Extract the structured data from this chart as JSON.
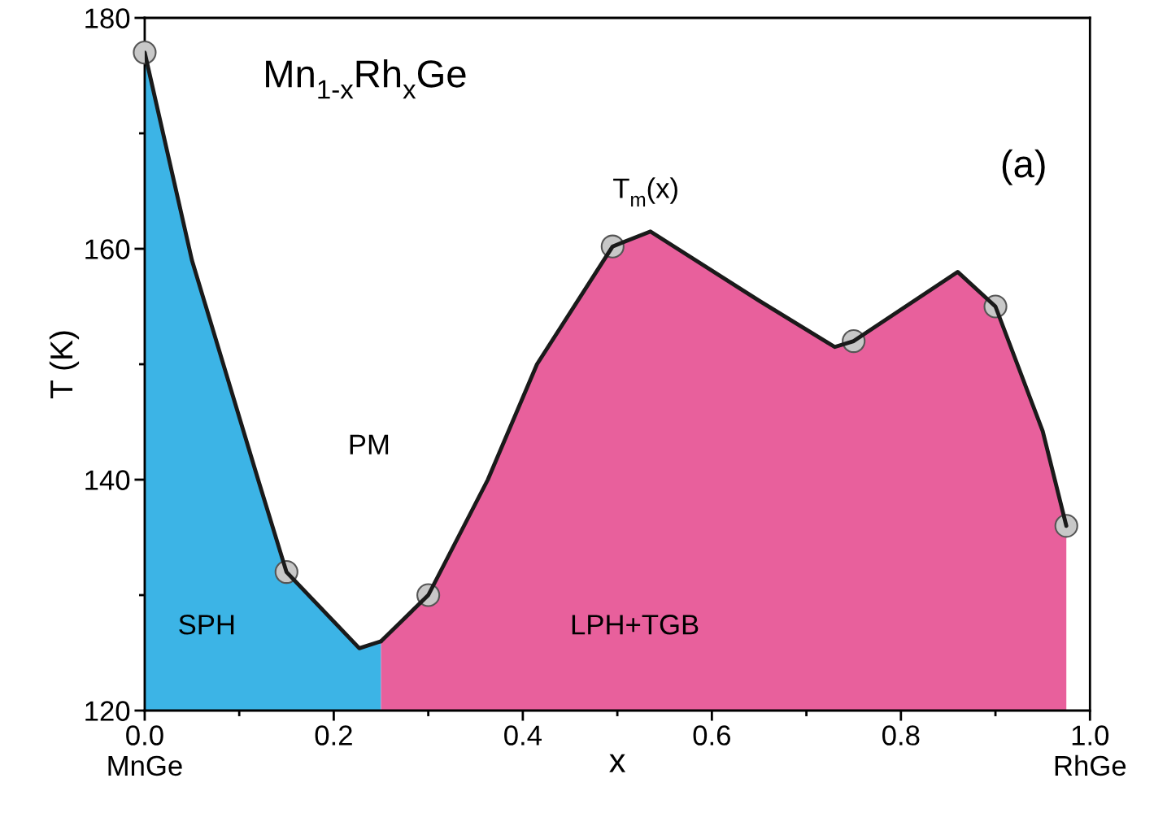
{
  "chart_data": {
    "type": "area",
    "xlabel": "x",
    "ylabel": "T (K)",
    "xlim": [
      0,
      1.0
    ],
    "ylim": [
      120,
      180
    ],
    "xticks": [
      {
        "value": 0,
        "label": "0.0\nMnGe"
      },
      {
        "value": 0.2,
        "label": "0.2"
      },
      {
        "value": 0.4,
        "label": "0.4"
      },
      {
        "value": 0.6,
        "label": "0.6"
      },
      {
        "value": 0.8,
        "label": "0.8"
      },
      {
        "value": 1.0,
        "label": "1.0\nRhGe"
      }
    ],
    "yticks": [
      120,
      140,
      160,
      180
    ],
    "grid": false,
    "legend": false,
    "series": [
      {
        "color": "#3cb4e6",
        "x": [
          0.0,
          0.05,
          0.12,
          0.15,
          0.227,
          0.25
        ],
        "values": [
          177,
          159,
          140,
          132,
          125.4,
          126
        ]
      },
      {
        "color": "#e8609c",
        "x": [
          0.25,
          0.3,
          0.363,
          0.415,
          0.495,
          0.535,
          0.65,
          0.73,
          0.75,
          0.86,
          0.9,
          0.95,
          0.975
        ],
        "values": [
          126,
          130,
          140,
          150,
          160.2,
          161.5,
          155.5,
          151.5,
          152,
          158,
          155,
          144.2,
          136
        ]
      },
      {
        "type": "scatter",
        "color": "#c8c8c8",
        "marker": "circle",
        "x": [
          0.0,
          0.15,
          0.3,
          0.495,
          0.75,
          0.9,
          0.975
        ],
        "values": [
          177,
          132,
          130,
          160.2,
          152,
          155,
          136
        ]
      }
    ],
    "annotations": [
      "Mn$_{1-x}$Rh$_{x}$Ge",
      "(a)",
      "T$_{m}$(x)",
      "PM",
      "SPH",
      "LPH+TGB"
    ]
  }
}
